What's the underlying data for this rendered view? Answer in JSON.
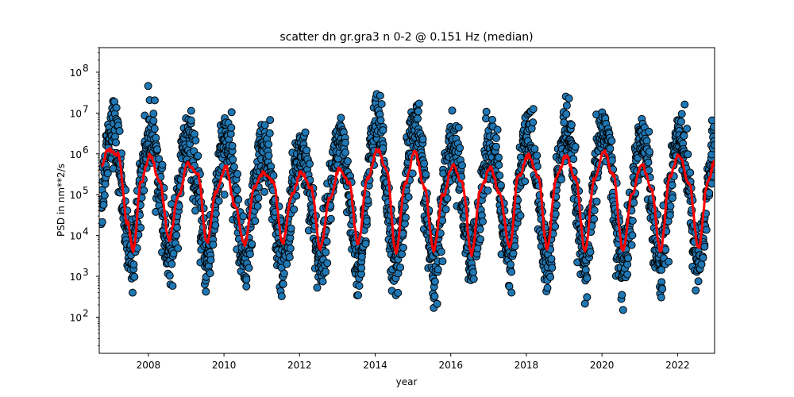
{
  "chart_data": {
    "type": "scatter",
    "title": "scatter dn gr.gra3 n 0-2 @ 0.151 Hz (median)",
    "xlabel": "year",
    "ylabel": "PSD in nm**2/s",
    "xlim": [
      2006.7,
      2022.98
    ],
    "ylim": [
      13,
      400000000
    ],
    "yscale": "log",
    "xticks": [
      2008,
      2010,
      2012,
      2014,
      2016,
      2018,
      2020,
      2022
    ],
    "xtick_labels": [
      "2008",
      "2010",
      "2012",
      "2014",
      "2016",
      "2018",
      "2020",
      "2022"
    ],
    "yticks": [
      100,
      1000,
      10000,
      100000,
      1000000,
      10000000,
      100000000
    ],
    "ytick_labels": [
      {
        "base": "10",
        "exp": "2"
      },
      {
        "base": "10",
        "exp": "3"
      },
      {
        "base": "10",
        "exp": "4"
      },
      {
        "base": "10",
        "exp": "5"
      },
      {
        "base": "10",
        "exp": "6"
      },
      {
        "base": "10",
        "exp": "7"
      },
      {
        "base": "10",
        "exp": "8"
      }
    ],
    "grid": false,
    "series": [
      {
        "kind": "scatter",
        "color": "#1f77b4",
        "edge_color": "#000000",
        "x_range": [
          2006.75,
          2022.98
        ],
        "cycle_years": 1.0,
        "peak_phase_year_offset": 0.05,
        "approx_peak_values": [
          1300000,
          950000,
          550000,
          480000,
          350000,
          350000,
          420000,
          1300000,
          1150000,
          520000,
          450000,
          880000,
          880000,
          1150000,
          580000,
          950000,
          650000
        ],
        "approx_trough_values": [
          4500,
          8000,
          7000,
          6000,
          6500,
          4800,
          6500,
          4000,
          4500,
          3600,
          5000,
          5000,
          4500,
          4200,
          4200,
          5000,
          6500
        ]
      },
      {
        "kind": "line",
        "color": "#ff0000",
        "x": [
          2006.75,
          2006.95,
          2007.2,
          2007.45,
          2007.6,
          2007.8,
          2008.05,
          2008.3,
          2008.55,
          2008.8,
          2009.05,
          2009.3,
          2009.55,
          2009.8,
          2010.05,
          2010.3,
          2010.55,
          2010.8,
          2011.05,
          2011.3,
          2011.55,
          2011.8,
          2012.05,
          2012.3,
          2012.55,
          2012.8,
          2013.05,
          2013.3,
          2013.55,
          2013.8,
          2014.05,
          2014.3,
          2014.55,
          2014.8,
          2015.05,
          2015.3,
          2015.55,
          2015.8,
          2016.05,
          2016.3,
          2016.55,
          2016.8,
          2017.05,
          2017.3,
          2017.55,
          2017.8,
          2018.05,
          2018.3,
          2018.55,
          2018.8,
          2019.05,
          2019.3,
          2019.55,
          2019.8,
          2020.05,
          2020.3,
          2020.55,
          2020.8,
          2021.05,
          2021.3,
          2021.55,
          2021.8,
          2022.05,
          2022.3,
          2022.55,
          2022.8,
          2022.98
        ],
        "y": [
          550000,
          1300000,
          950000,
          20000,
          4500,
          200000,
          950000,
          200000,
          8000,
          100000,
          550000,
          350000,
          7000,
          120000,
          480000,
          50000,
          6000,
          150000,
          350000,
          200000,
          6500,
          100000,
          350000,
          150000,
          4800,
          80000,
          420000,
          200000,
          6500,
          250000,
          1300000,
          400000,
          4000,
          200000,
          1150000,
          150000,
          4500,
          100000,
          520000,
          200000,
          3600,
          150000,
          450000,
          100000,
          5000,
          300000,
          880000,
          300000,
          5000,
          300000,
          880000,
          250000,
          4500,
          250000,
          1150000,
          300000,
          4200,
          100000,
          580000,
          150000,
          4200,
          300000,
          950000,
          200000,
          5000,
          200000,
          650000
        ]
      }
    ]
  }
}
